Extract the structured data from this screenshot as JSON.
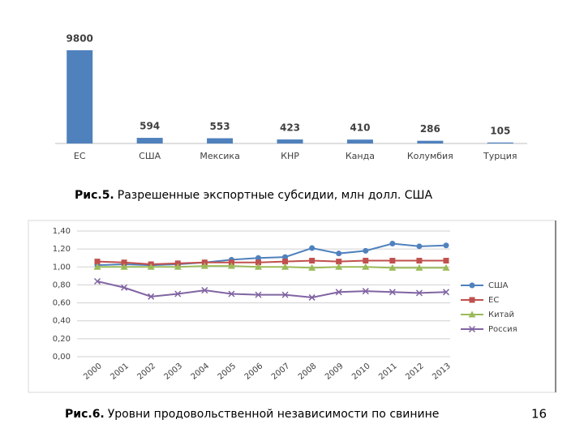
{
  "chart_data": [
    {
      "type": "bar",
      "caption_label": "Рис.5.",
      "caption": "Разрешенные экспортные субсидии, млн долл. США",
      "categories": [
        "ЕС",
        "США",
        "Мексика",
        "КНР",
        "Канда",
        "Колумбия",
        "Турция"
      ],
      "values": [
        9800,
        594,
        553,
        423,
        410,
        286,
        105
      ],
      "color": "#4f81bd"
    },
    {
      "type": "line",
      "caption_label": "Рис.6.",
      "caption": "Уровни продовольственной независимости по свинине",
      "categories": [
        "2000",
        "2001",
        "2002",
        "2003",
        "2004",
        "2005",
        "2006",
        "2007",
        "2008",
        "2009",
        "2010",
        "2011",
        "2012",
        "2013"
      ],
      "ylim": [
        0,
        1.4
      ],
      "yticks": [
        {
          "value": 0,
          "label": "0,00"
        },
        {
          "value": 0.2,
          "label": "0,20"
        },
        {
          "value": 0.4,
          "label": "0,40"
        },
        {
          "value": 0.6,
          "label": "0,60"
        },
        {
          "value": 0.8,
          "label": "0,80"
        },
        {
          "value": 1.0,
          "label": "1,00"
        },
        {
          "value": 1.2,
          "label": "1,20"
        },
        {
          "value": 1.4,
          "label": "1,40"
        }
      ],
      "grid": true,
      "legend": "right",
      "series": [
        {
          "name": "США",
          "color": "#4f81bd",
          "marker": "circle",
          "values": [
            1.02,
            1.03,
            1.02,
            1.03,
            1.05,
            1.08,
            1.1,
            1.11,
            1.21,
            1.15,
            1.18,
            1.26,
            1.23,
            1.24
          ]
        },
        {
          "name": "ЕС",
          "color": "#c0504d",
          "marker": "square",
          "values": [
            1.06,
            1.05,
            1.03,
            1.04,
            1.05,
            1.05,
            1.05,
            1.06,
            1.07,
            1.06,
            1.07,
            1.07,
            1.07,
            1.07
          ]
        },
        {
          "name": "Китай",
          "color": "#9bbb59",
          "marker": "triangle",
          "values": [
            1.0,
            1.0,
            1.0,
            1.0,
            1.01,
            1.01,
            1.0,
            1.0,
            0.99,
            1.0,
            1.0,
            0.99,
            0.99,
            0.99
          ]
        },
        {
          "name": "Россия",
          "color": "#8064a2",
          "marker": "x",
          "values": [
            0.84,
            0.77,
            0.67,
            0.7,
            0.74,
            0.7,
            0.69,
            0.69,
            0.66,
            0.72,
            0.73,
            0.72,
            0.71,
            0.72
          ]
        }
      ]
    }
  ],
  "slide_number": "16"
}
